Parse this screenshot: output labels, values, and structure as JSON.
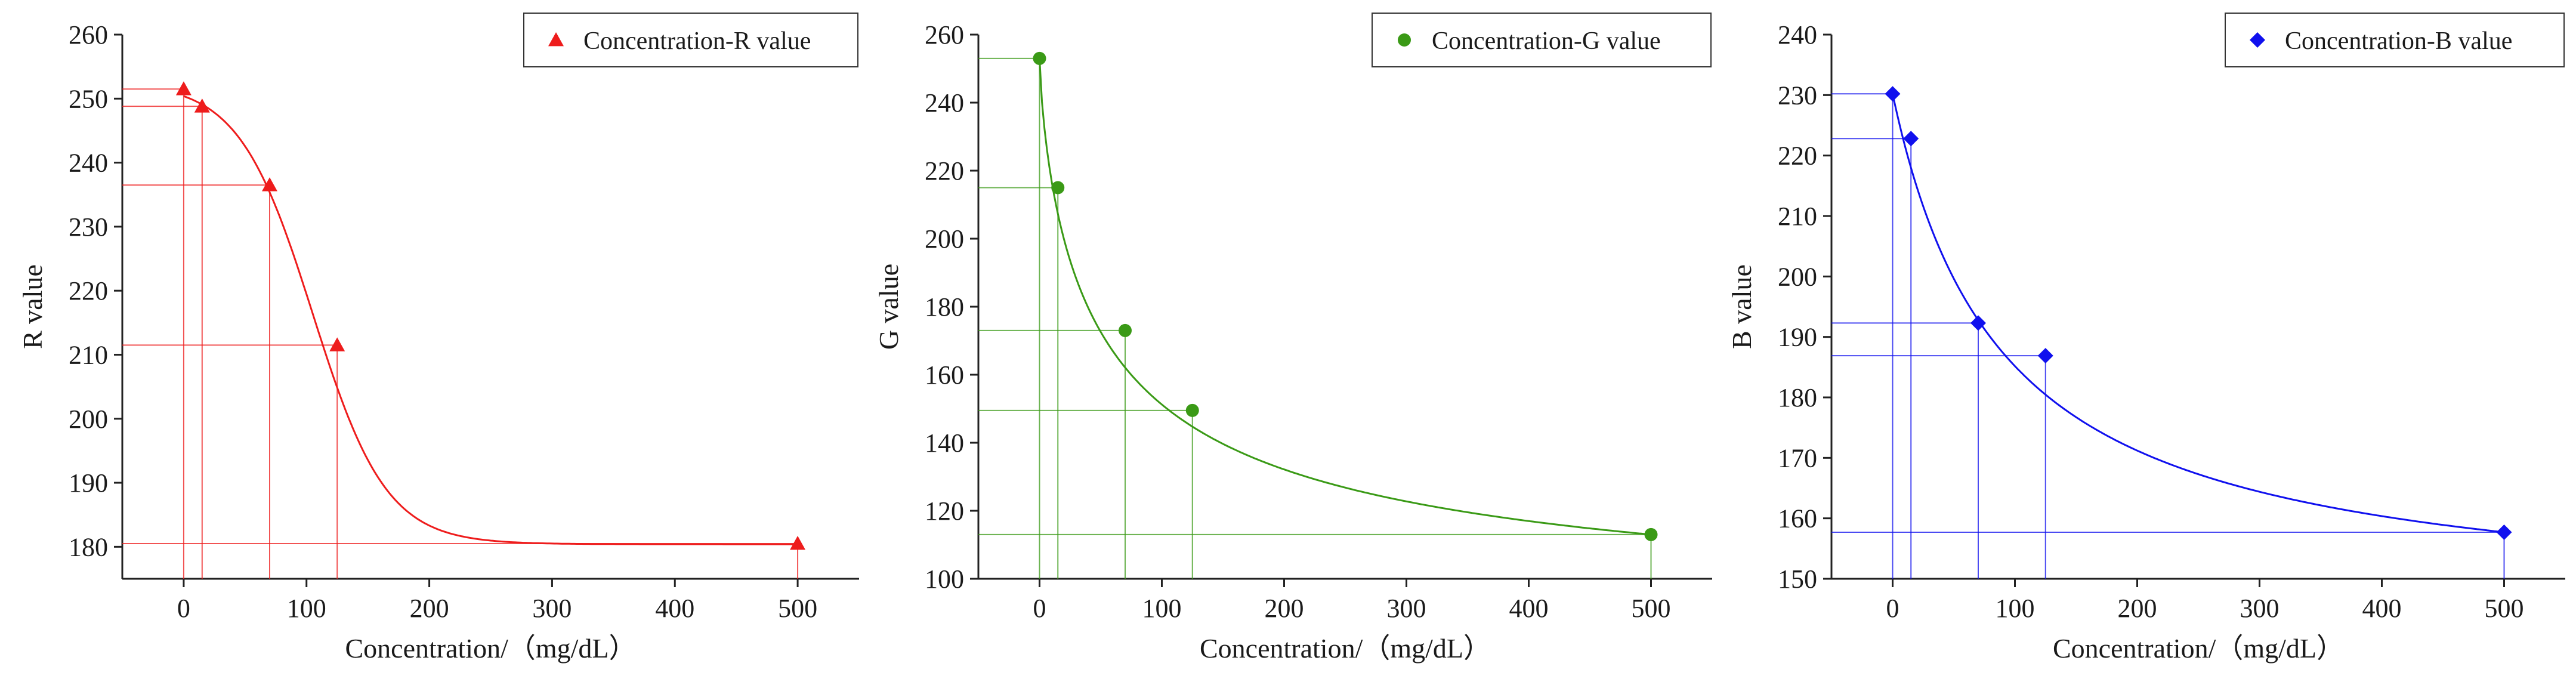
{
  "chart_data": [
    {
      "type": "scatter",
      "title": "",
      "xlabel": "Concentration/（mg/dL）",
      "ylabel": "R value",
      "xlim": [
        -50,
        550
      ],
      "ylim": [
        175,
        260
      ],
      "xticks": [
        0,
        100,
        200,
        300,
        400,
        500
      ],
      "yticks": [
        180,
        190,
        200,
        210,
        220,
        230,
        240,
        250,
        260
      ],
      "legend": "top-right",
      "grid": false,
      "series": [
        {
          "name": "Concentration-R value",
          "marker": "triangle",
          "color": "#ee1c1c",
          "x": [
            0,
            15,
            70,
            125,
            500
          ],
          "y": [
            251.5,
            248.8,
            236.5,
            211.5,
            180.5
          ],
          "fit": "sigmoid",
          "fit_params": {
            "top": 252.5,
            "bottom": 180.4,
            "x0": 105,
            "k": 30
          }
        }
      ]
    },
    {
      "type": "scatter",
      "title": "",
      "xlabel": "Concentration/（mg/dL）",
      "ylabel": "G value",
      "xlim": [
        -50,
        550
      ],
      "ylim": [
        100,
        260
      ],
      "xticks": [
        0,
        100,
        200,
        300,
        400,
        500
      ],
      "yticks": [
        100,
        120,
        140,
        160,
        180,
        200,
        220,
        240,
        260
      ],
      "legend": "top-right",
      "grid": false,
      "series": [
        {
          "name": "Concentration-G value",
          "marker": "circle",
          "color": "#3a9a16",
          "x": [
            0,
            15,
            70,
            125,
            500
          ],
          "y": [
            253,
            215,
            173,
            149.5,
            113
          ],
          "fit": "decay",
          "fit_params": {
            "start": 253,
            "end": 113,
            "scale": 55,
            "power": 0.75
          }
        }
      ]
    },
    {
      "type": "scatter",
      "title": "",
      "xlabel": "Concentration/（mg/dL）",
      "ylabel": "B value",
      "xlim": [
        -50,
        550
      ],
      "ylim": [
        150,
        240
      ],
      "xticks": [
        0,
        100,
        200,
        300,
        400,
        500
      ],
      "yticks": [
        150,
        160,
        170,
        180,
        190,
        200,
        210,
        220,
        230,
        240
      ],
      "legend": "top-right",
      "grid": false,
      "series": [
        {
          "name": "Concentration-B value",
          "marker": "diamond",
          "color": "#1010ee",
          "x": [
            0,
            15,
            70,
            125,
            500
          ],
          "y": [
            230.2,
            222.8,
            192.3,
            186.9,
            157.7
          ],
          "fit": "decay",
          "fit_params": {
            "start": 230.2,
            "end": 157.7,
            "scale": 90,
            "power": 1.0
          }
        }
      ]
    }
  ]
}
